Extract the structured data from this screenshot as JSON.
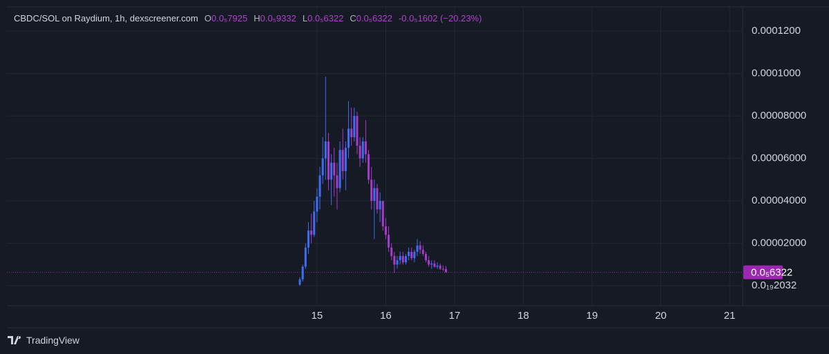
{
  "chart_data": {
    "type": "candlestick",
    "title": "CBDC/SOL on Raydium, 1h, dexscreener.com",
    "ohlc_legend": [
      {
        "key": "O",
        "value": "0.0₅7925"
      },
      {
        "key": "H",
        "value": "0.0₅9332"
      },
      {
        "key": "L",
        "value": "0.0₅6322"
      },
      {
        "key": "C",
        "value": "0.0₅6322"
      }
    ],
    "change": "-0.0₅1602 (−20.23%)",
    "watermark": "TradingView",
    "up_color": "#3f6df2",
    "down_color": "#a53cc9",
    "x": [
      14.75,
      14.7917,
      14.8333,
      14.875,
      14.9167,
      14.9583,
      15,
      15.0417,
      15.0833,
      15.125,
      15.1667,
      15.2083,
      15.25,
      15.2917,
      15.3333,
      15.375,
      15.4167,
      15.4583,
      15.5,
      15.5417,
      15.5833,
      15.625,
      15.6667,
      15.7083,
      15.75,
      15.7917,
      15.8333,
      15.875,
      15.9167,
      15.9583,
      16,
      16.0417,
      16.0833,
      16.125,
      16.1667,
      16.2083,
      16.25,
      16.2917,
      16.3333,
      16.375,
      16.4167,
      16.4583,
      16.5,
      16.5417,
      16.5833,
      16.625,
      16.6667,
      16.7083,
      16.75,
      16.7917,
      16.8333,
      16.875
    ],
    "open": [
      5e-07,
      3e-06,
      9e-06,
      1.8e-05,
      2.6e-05,
      2.4e-05,
      3.5e-05,
      4.2e-05,
      5.2e-05,
      6e-05,
      6.8e-05,
      5e-05,
      5.8e-05,
      5.2e-05,
      4.6e-05,
      6.4e-05,
      5.4e-05,
      6.5e-05,
      7.4e-05,
      7e-05,
      8e-05,
      6.6e-05,
      6e-05,
      6.8e-05,
      6.2e-05,
      5e-05,
      4e-05,
      4.6e-05,
      3.6e-05,
      4e-05,
      2.8e-05,
      2.4e-05,
      1.8e-05,
      1.4e-05,
      1e-05,
      1.2e-05,
      1.4e-05,
      1.1e-05,
      1.4e-05,
      1.6e-05,
      1.3e-05,
      1.6e-05,
      1.9e-05,
      1.7e-05,
      1.5e-05,
      1.2e-05,
      1e-05,
      1.05e-05,
      9e-06,
      9.5e-06,
      8e-06,
      7.925e-06
    ],
    "high": [
      4e-06,
      1e-05,
      2e-05,
      3e-05,
      3.4e-05,
      4e-05,
      4.6e-05,
      5.6e-05,
      7e-05,
      9.85e-05,
      7.2e-05,
      6.2e-05,
      6.5e-05,
      5.8e-05,
      6.8e-05,
      7.4e-05,
      6.8e-05,
      8.7e-05,
      8.4e-05,
      8.4e-05,
      8.2e-05,
      7e-05,
      7e-05,
      7.8e-05,
      6.4e-05,
      5.6e-05,
      5e-05,
      4.8e-05,
      4.4e-05,
      4e-05,
      3.2e-05,
      2.8e-05,
      2e-05,
      1.6e-05,
      1.4e-05,
      1.6e-05,
      1.6e-05,
      1.5e-05,
      1.8e-05,
      1.8e-05,
      1.7e-05,
      2.2e-05,
      2.1e-05,
      1.9e-05,
      1.6e-05,
      1.4e-05,
      1.2e-05,
      1.2e-05,
      1.1e-05,
      1.05e-05,
      9.5e-06,
      9.332e-06
    ],
    "low": [
      0.0,
      2e-06,
      8e-06,
      1.5e-05,
      2e-05,
      2.3e-05,
      3e-05,
      3.6e-05,
      4.8e-05,
      5e-05,
      4.5e-05,
      3.8e-05,
      4.2e-05,
      3.6e-05,
      4.4e-05,
      5e-05,
      4.5e-05,
      6e-05,
      6.6e-05,
      6.8e-05,
      6.2e-05,
      5.6e-05,
      5.8e-05,
      5.8e-05,
      4.8e-05,
      3.6e-05,
      2.2e-05,
      3.4e-05,
      3e-05,
      2.6e-05,
      2.2e-05,
      1.6e-05,
      1.2e-05,
      6e-06,
      8e-06,
      1e-05,
      1e-05,
      1e-05,
      1.2e-05,
      1.2e-05,
      1.1e-05,
      1.4e-05,
      1.5e-05,
      1.4e-05,
      1.1e-05,
      9e-06,
      8e-06,
      8.5e-06,
      8e-06,
      7.5e-06,
      7e-06,
      6.322e-06
    ],
    "close": [
      3e-06,
      9e-06,
      1.8e-05,
      2.6e-05,
      2.4e-05,
      3.5e-05,
      4.2e-05,
      5.2e-05,
      6e-05,
      6.8e-05,
      5e-05,
      5.8e-05,
      5.2e-05,
      4.6e-05,
      6.4e-05,
      5.4e-05,
      6.5e-05,
      7.4e-05,
      7e-05,
      8e-05,
      6.6e-05,
      6e-05,
      6.8e-05,
      6.2e-05,
      5e-05,
      4e-05,
      4.6e-05,
      3.6e-05,
      4e-05,
      2.8e-05,
      2.4e-05,
      1.8e-05,
      1.4e-05,
      1e-05,
      1.2e-05,
      1.4e-05,
      1.1e-05,
      1.4e-05,
      1.6e-05,
      1.3e-05,
      1.6e-05,
      1.9e-05,
      1.7e-05,
      1.5e-05,
      1.2e-05,
      1e-05,
      1.05e-05,
      9e-06,
      9.5e-06,
      8e-06,
      7.9e-06,
      6.322e-06
    ],
    "price_line": {
      "value": 6.322e-06,
      "label": "0.0₅6322",
      "color": "#9c27b0"
    },
    "xlim": [
      10.49,
      21.19
    ],
    "xticks": [
      15,
      16,
      17,
      18,
      19,
      20,
      21
    ],
    "ylim": [
      -9.4e-06,
      0.0001314
    ],
    "yticks": [
      {
        "value": 2.032e-20,
        "label": "0.0₁₉2032"
      },
      {
        "value": 2e-05,
        "label": "0.00002000"
      },
      {
        "value": 4e-05,
        "label": "0.00004000"
      },
      {
        "value": 6e-05,
        "label": "0.00006000"
      },
      {
        "value": 8e-05,
        "label": "0.00008000"
      },
      {
        "value": 0.0001,
        "label": "0.0001000"
      },
      {
        "value": 0.00012,
        "label": "0.0001200"
      }
    ],
    "grid": true
  }
}
